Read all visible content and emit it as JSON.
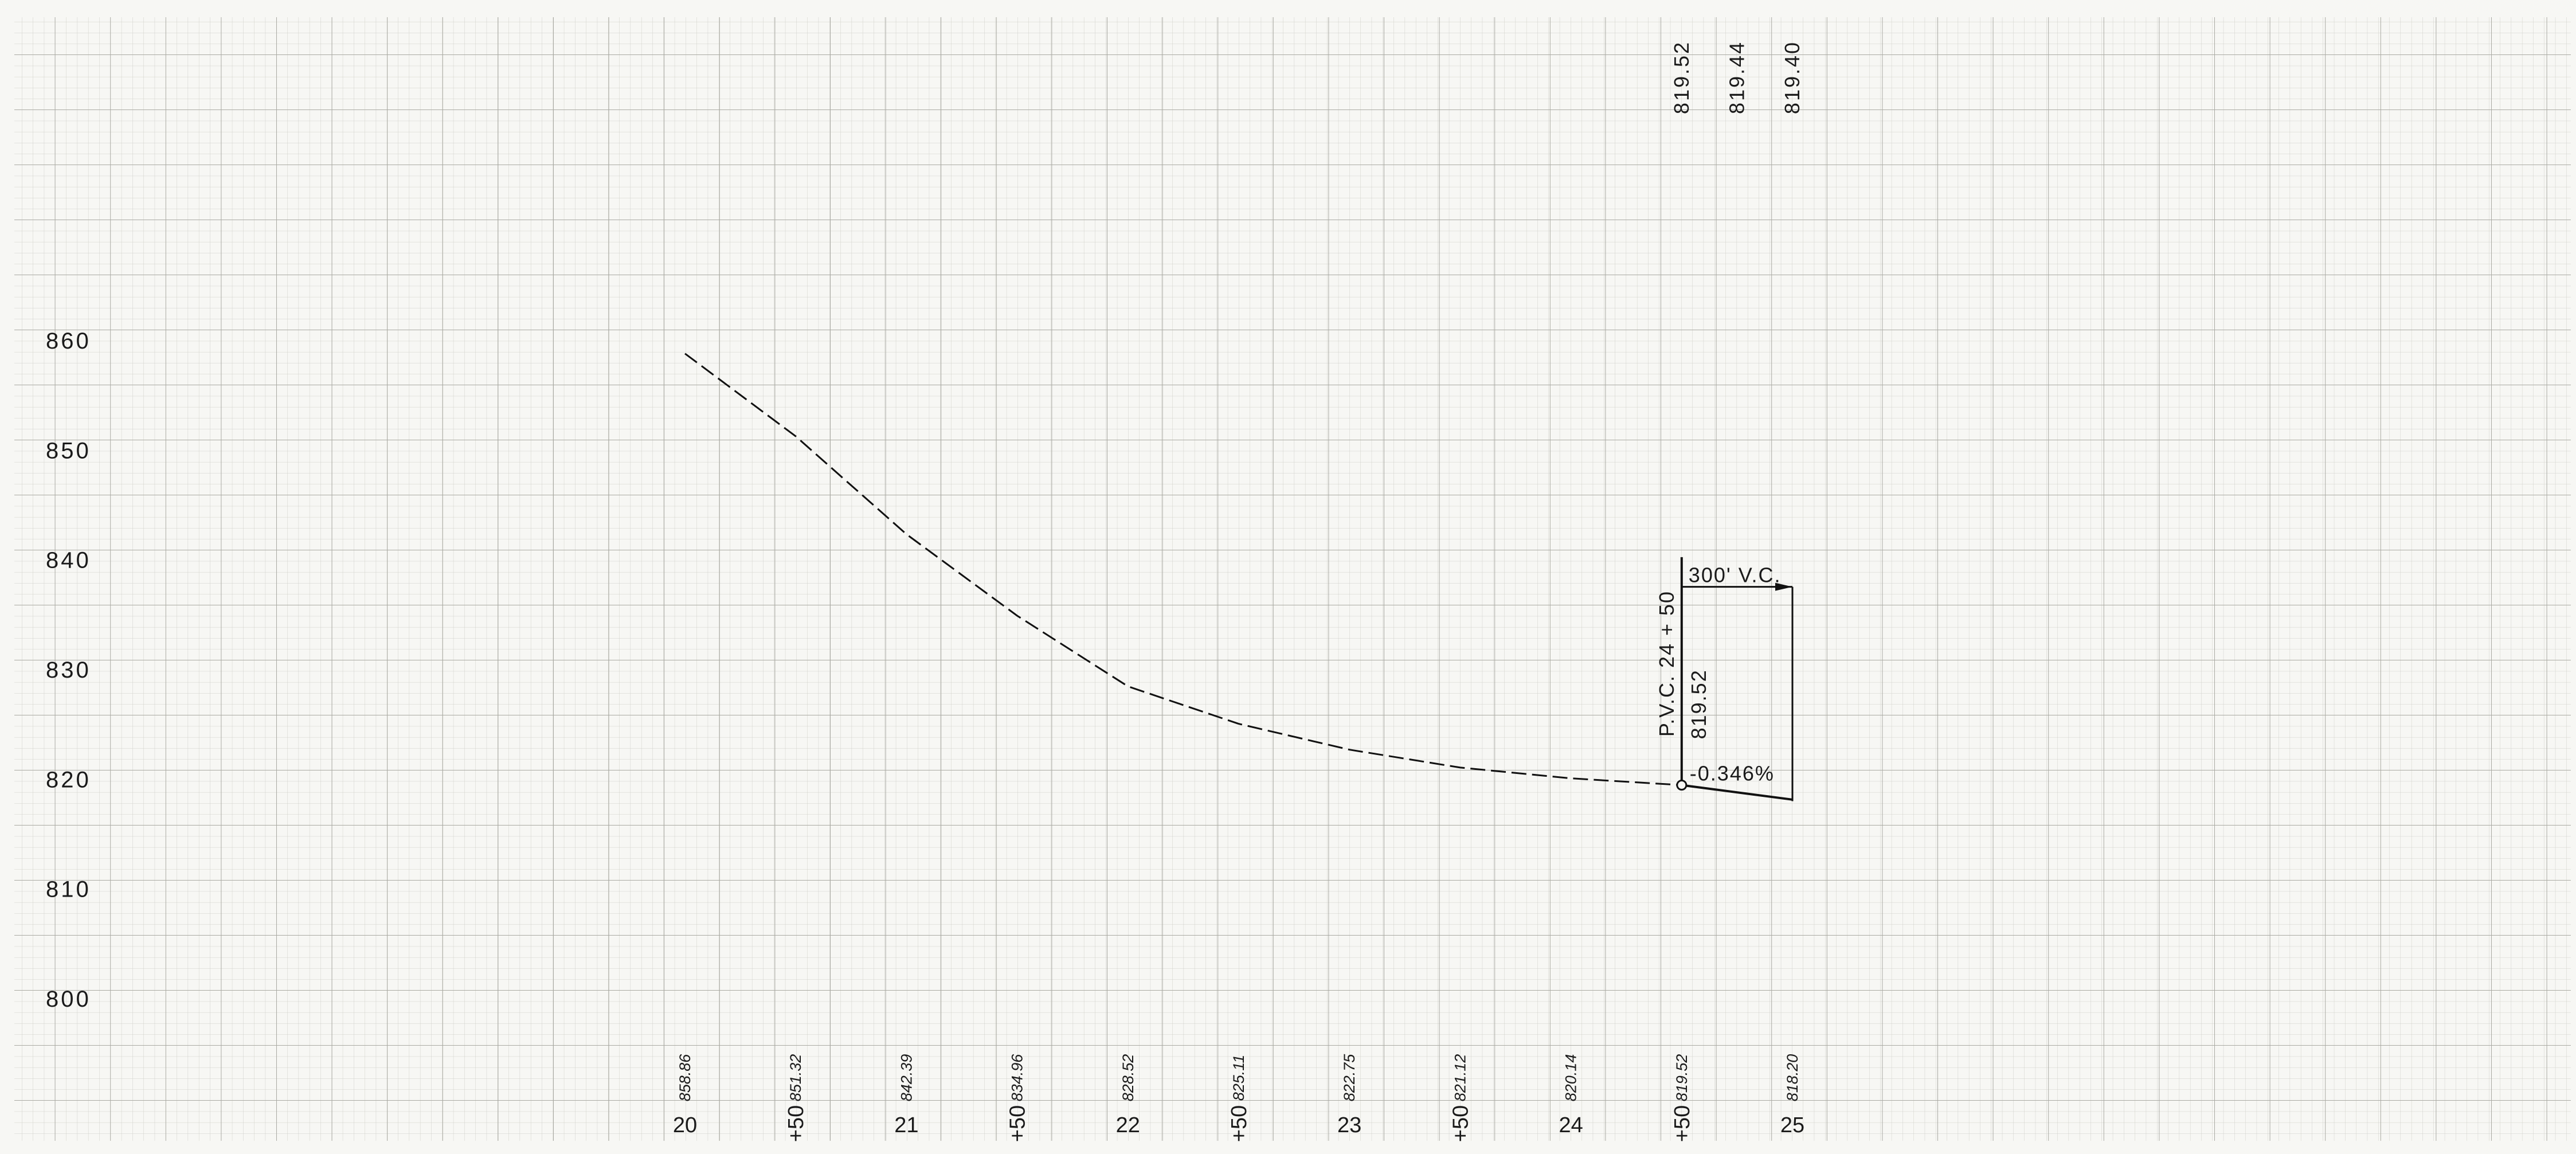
{
  "chart_data": {
    "type": "line",
    "title": "",
    "xlabel": "",
    "ylabel": "",
    "xlim": [
      2000,
      2500
    ],
    "ylim": [
      800,
      860
    ],
    "y_ticks": [
      {
        "value": 860,
        "label": "860"
      },
      {
        "value": 850,
        "label": "850"
      },
      {
        "value": 840,
        "label": "840"
      },
      {
        "value": 830,
        "label": "830"
      },
      {
        "value": 820,
        "label": "820"
      },
      {
        "value": 810,
        "label": "810"
      },
      {
        "value": 800,
        "label": "800"
      }
    ],
    "x_ticks": [
      {
        "value": 2000,
        "label": "20",
        "rotated": false
      },
      {
        "value": 2050,
        "label": "+50",
        "rotated": true
      },
      {
        "value": 2100,
        "label": "21",
        "rotated": false
      },
      {
        "value": 2150,
        "label": "+50",
        "rotated": true
      },
      {
        "value": 2200,
        "label": "22",
        "rotated": false
      },
      {
        "value": 2250,
        "label": "+50",
        "rotated": true
      },
      {
        "value": 2300,
        "label": "23",
        "rotated": false
      },
      {
        "value": 2350,
        "label": "+50",
        "rotated": true
      },
      {
        "value": 2400,
        "label": "24",
        "rotated": false
      },
      {
        "value": 2450,
        "label": "+50",
        "rotated": true
      },
      {
        "value": 2500,
        "label": "25",
        "rotated": false
      }
    ],
    "grid": true,
    "series": [
      {
        "style": "dashed",
        "x": [
          2000,
          2050,
          2100,
          2150,
          2200,
          2250,
          2300,
          2350,
          2400,
          2450
        ],
        "y": [
          858.86,
          851.32,
          842.39,
          834.96,
          828.52,
          825.11,
          822.75,
          821.12,
          820.14,
          819.52
        ]
      },
      {
        "style": "solid",
        "x": [
          2450,
          2500
        ],
        "y": [
          819.52,
          818.2
        ]
      }
    ],
    "ground_elevations": [
      {
        "x": 2000,
        "label": "858.86"
      },
      {
        "x": 2050,
        "label": "851.32"
      },
      {
        "x": 2100,
        "label": "842.39"
      },
      {
        "x": 2150,
        "label": "834.96"
      },
      {
        "x": 2200,
        "label": "828.52"
      },
      {
        "x": 2250,
        "label": "825.11"
      },
      {
        "x": 2300,
        "label": "822.75"
      },
      {
        "x": 2350,
        "label": "821.12"
      },
      {
        "x": 2400,
        "label": "820.14"
      },
      {
        "x": 2450,
        "label": "819.52"
      },
      {
        "x": 2500,
        "label": "818.20"
      }
    ],
    "grade_elevations": [
      {
        "x": 2450,
        "label": "819.52"
      },
      {
        "x": 2475,
        "label": "819.44"
      },
      {
        "x": 2500,
        "label": "819.40"
      }
    ],
    "annotations": {
      "pvc_station": "P.V.C. 24 + 50",
      "pvc_elevation": "819.52",
      "vertical_curve": "300' V.C.",
      "grade": "-0.346%"
    }
  }
}
